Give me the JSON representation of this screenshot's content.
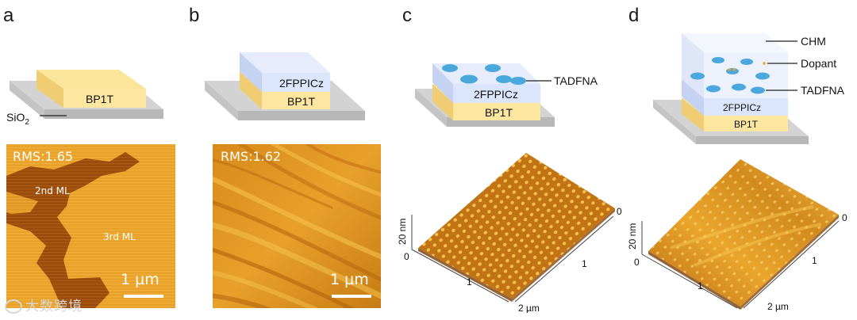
{
  "panels": {
    "a": {
      "letter": "a",
      "layer": "BP1T",
      "substrate": "SiO",
      "substrate_sub": "2",
      "rms": "RMS:1.65",
      "region1": "2nd ML",
      "region2": "3rd ML",
      "scale": "1 µm"
    },
    "b": {
      "letter": "b",
      "top_layer": "2FPPICz",
      "bottom_layer": "BP1T",
      "rms": "RMS:1.62",
      "scale": "1 µm"
    },
    "c": {
      "letter": "c",
      "dopant_label": "TADFNA",
      "top_layer": "2FPPICz",
      "bottom_layer": "BP1T",
      "z_label": "20 nm",
      "axis_ticks": [
        "0",
        "1",
        "2 µm"
      ],
      "depth_ticks": [
        "0",
        "1"
      ]
    },
    "d": {
      "letter": "d",
      "labels": [
        "CHM",
        "Dopant",
        "TADFNA"
      ],
      "top_layer": "2FPPICz",
      "bottom_layer": "BP1T",
      "z_label": "20 nm",
      "axis_ticks": [
        "0",
        "1",
        "2 µm"
      ],
      "depth_ticks": [
        "0",
        "1"
      ]
    }
  },
  "watermark": "大数跨境",
  "colors": {
    "bp1t": "#fde7a0",
    "bp1t_side": "#f2cf76",
    "host": "#dbe5fb",
    "host_side": "#c5d2f2",
    "chm": "#edf1fb",
    "substrate": "#d3d3d3",
    "substrate_side": "#b8b8b8",
    "afm_dark": "#9a4a06",
    "afm_light": "#f5b01c",
    "dot": "#4aa8dc"
  }
}
